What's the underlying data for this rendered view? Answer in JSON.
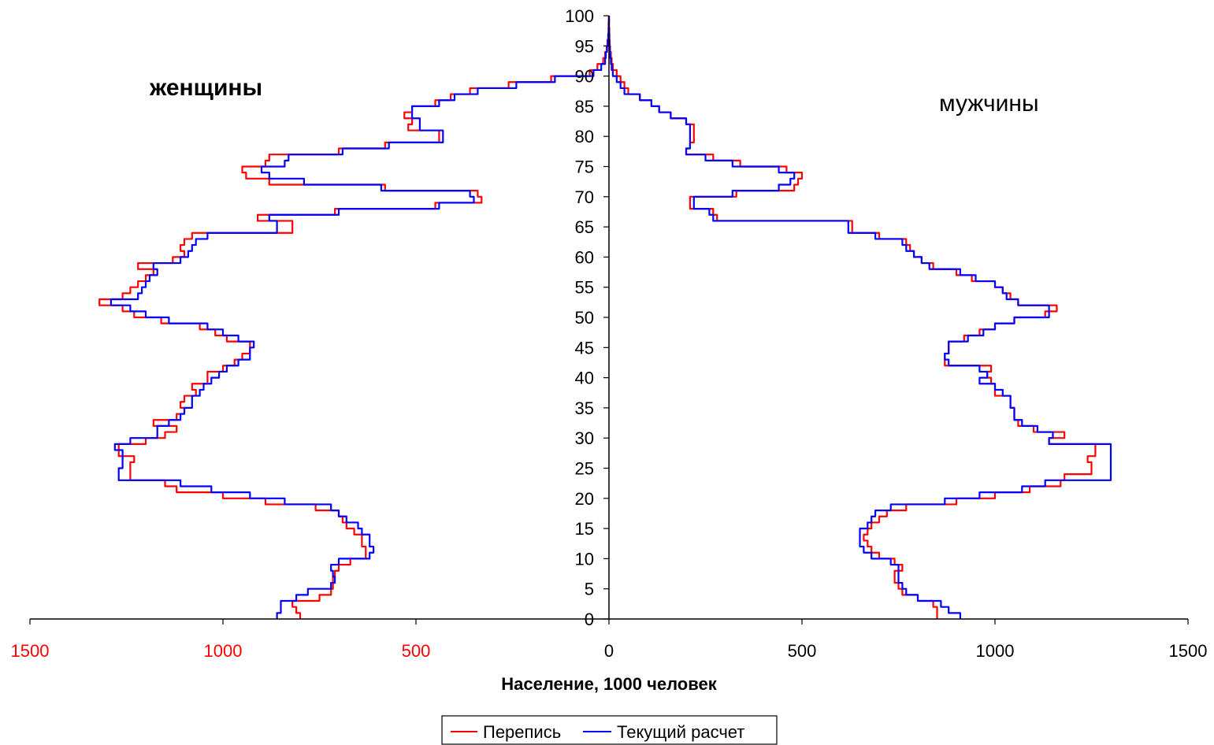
{
  "chart_data": {
    "type": "line",
    "title": "",
    "xlabel": "Население, 1000 человек",
    "ylabel": "",
    "xlim": [
      -1500,
      1500
    ],
    "ylim": [
      0,
      100
    ],
    "x_ticks": [
      {
        "value": -1500,
        "label": "1500"
      },
      {
        "value": -1000,
        "label": "1000"
      },
      {
        "value": -500,
        "label": "500"
      },
      {
        "value": 0,
        "label": "0"
      },
      {
        "value": 500,
        "label": "500"
      },
      {
        "value": 1000,
        "label": "1000"
      },
      {
        "value": 1500,
        "label": "1500"
      }
    ],
    "y_ticks": [
      0,
      5,
      10,
      15,
      20,
      25,
      30,
      35,
      40,
      45,
      50,
      55,
      60,
      65,
      70,
      75,
      80,
      85,
      90,
      95,
      100
    ],
    "left_label": "женщины",
    "right_label": "мужчины",
    "legend": {
      "position": "bottom-center",
      "entries": [
        "Перепись",
        "Текущий расчет"
      ]
    },
    "grid": false,
    "colors": {
      "negative_tick": "#ff0000",
      "positive_tick": "#000000",
      "census": "#ff0000",
      "estimate": "#0000ff"
    },
    "ages": [
      0,
      1,
      2,
      3,
      4,
      5,
      6,
      7,
      8,
      9,
      10,
      11,
      12,
      13,
      14,
      15,
      16,
      17,
      18,
      19,
      20,
      21,
      22,
      23,
      24,
      25,
      26,
      27,
      28,
      29,
      30,
      31,
      32,
      33,
      34,
      35,
      36,
      37,
      38,
      39,
      40,
      41,
      42,
      43,
      44,
      45,
      46,
      47,
      48,
      49,
      50,
      51,
      52,
      53,
      54,
      55,
      56,
      57,
      58,
      59,
      60,
      61,
      62,
      63,
      64,
      65,
      66,
      67,
      68,
      69,
      70,
      71,
      72,
      73,
      74,
      75,
      76,
      77,
      78,
      79,
      80,
      81,
      82,
      83,
      84,
      85,
      86,
      87,
      88,
      89,
      90,
      91,
      92,
      93,
      94,
      95,
      96,
      97,
      98,
      99,
      100
    ],
    "series": [
      {
        "name": "Перепись",
        "color": "#ff0000",
        "women": [
          800,
          810,
          820,
          750,
          720,
          715,
          715,
          710,
          700,
          670,
          630,
          630,
          640,
          640,
          660,
          680,
          690,
          700,
          760,
          890,
          1000,
          1120,
          1150,
          1240,
          1240,
          1240,
          1230,
          1270,
          1270,
          1200,
          1150,
          1120,
          1180,
          1120,
          1100,
          1110,
          1100,
          1070,
          1080,
          1040,
          1040,
          1000,
          970,
          950,
          930,
          930,
          990,
          1020,
          1060,
          1160,
          1230,
          1260,
          1320,
          1260,
          1240,
          1220,
          1200,
          1180,
          1220,
          1130,
          1100,
          1110,
          1100,
          1080,
          820,
          820,
          910,
          710,
          450,
          330,
          340,
          580,
          880,
          940,
          950,
          890,
          880,
          700,
          580,
          440,
          440,
          520,
          510,
          530,
          510,
          450,
          410,
          360,
          260,
          150,
          50,
          30,
          15,
          10,
          6,
          4,
          2,
          1,
          1,
          0,
          0
        ],
        "men": [
          850,
          850,
          840,
          800,
          760,
          750,
          740,
          740,
          760,
          740,
          700,
          680,
          670,
          660,
          670,
          680,
          700,
          720,
          770,
          900,
          1000,
          1090,
          1170,
          1180,
          1250,
          1250,
          1240,
          1260,
          1260,
          1140,
          1180,
          1100,
          1060,
          1050,
          1050,
          1040,
          1040,
          1000,
          1000,
          990,
          980,
          990,
          870,
          870,
          880,
          880,
          920,
          960,
          1000,
          1050,
          1130,
          1160,
          1060,
          1040,
          1020,
          1000,
          940,
          900,
          840,
          810,
          790,
          780,
          770,
          700,
          630,
          630,
          280,
          270,
          210,
          210,
          330,
          480,
          490,
          500,
          460,
          340,
          270,
          200,
          210,
          220,
          220,
          220,
          200,
          160,
          130,
          110,
          80,
          50,
          40,
          30,
          20,
          10,
          7,
          5,
          3,
          2,
          1,
          1,
          0,
          0,
          0
        ]
      },
      {
        "name": "Текущий расчет",
        "color": "#0000ff",
        "women": [
          860,
          850,
          850,
          810,
          780,
          720,
          710,
          715,
          720,
          700,
          620,
          610,
          620,
          620,
          640,
          650,
          680,
          700,
          720,
          840,
          930,
          1030,
          1110,
          1270,
          1270,
          1260,
          1260,
          1260,
          1280,
          1240,
          1170,
          1170,
          1140,
          1110,
          1100,
          1080,
          1080,
          1060,
          1050,
          1030,
          1010,
          990,
          960,
          930,
          930,
          920,
          960,
          1000,
          1040,
          1140,
          1200,
          1240,
          1290,
          1220,
          1210,
          1200,
          1190,
          1170,
          1180,
          1110,
          1090,
          1080,
          1070,
          1040,
          860,
          860,
          880,
          700,
          440,
          350,
          360,
          590,
          790,
          880,
          900,
          840,
          830,
          690,
          570,
          430,
          430,
          490,
          490,
          510,
          510,
          440,
          400,
          340,
          240,
          140,
          40,
          20,
          10,
          8,
          5,
          3,
          2,
          1,
          0,
          0,
          0
        ],
        "men": [
          910,
          880,
          860,
          800,
          770,
          760,
          750,
          750,
          750,
          730,
          680,
          660,
          650,
          650,
          650,
          670,
          680,
          690,
          730,
          870,
          960,
          1070,
          1130,
          1300,
          1300,
          1300,
          1300,
          1300,
          1300,
          1140,
          1150,
          1110,
          1070,
          1050,
          1050,
          1040,
          1040,
          1020,
          1000,
          960,
          980,
          960,
          880,
          870,
          880,
          880,
          930,
          970,
          1000,
          1050,
          1140,
          1140,
          1060,
          1030,
          1020,
          1000,
          950,
          910,
          830,
          810,
          790,
          770,
          760,
          690,
          620,
          620,
          270,
          260,
          220,
          220,
          320,
          440,
          470,
          480,
          440,
          320,
          250,
          200,
          210,
          210,
          210,
          210,
          200,
          160,
          130,
          110,
          80,
          40,
          30,
          20,
          10,
          7,
          5,
          3,
          2,
          1,
          1,
          0,
          0,
          0,
          0
        ]
      }
    ]
  }
}
